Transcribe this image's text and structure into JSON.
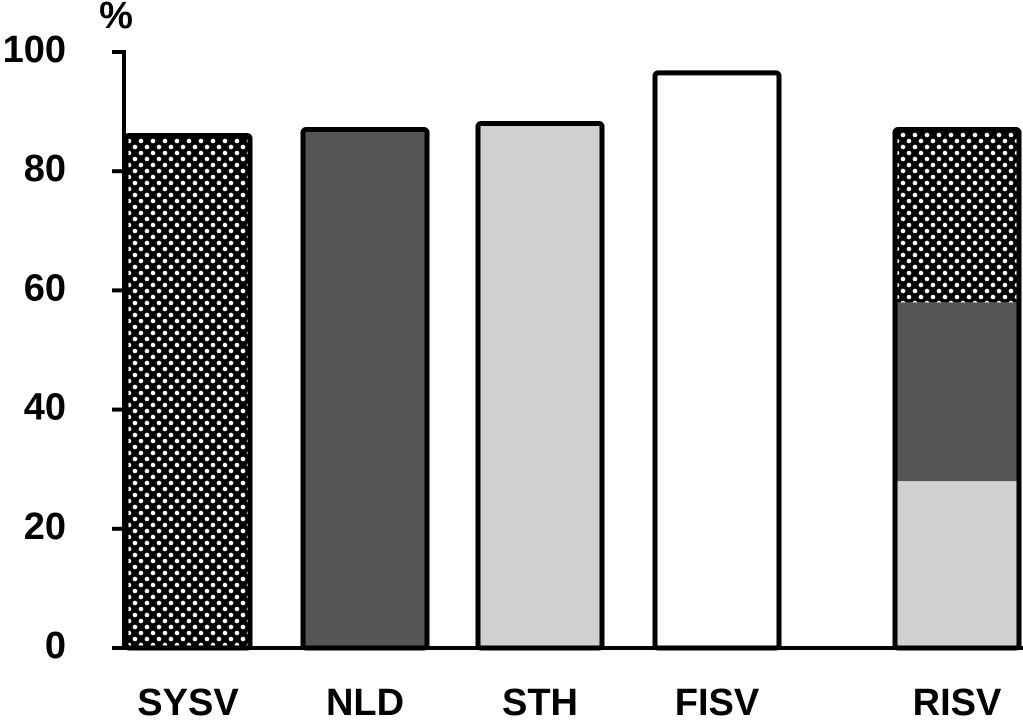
{
  "chart_data": {
    "type": "stacked_bar",
    "ylabel": "%",
    "categories": [
      "SYSV",
      "NLD",
      "STH",
      "FISV",
      "RISV"
    ],
    "series": [
      {
        "color": "#d0d0d0",
        "values": [
          null,
          null,
          88,
          null,
          28
        ]
      },
      {
        "color": "#555555",
        "values": [
          null,
          87,
          null,
          null,
          30
        ]
      },
      {
        "color": "#000000",
        "pattern": "dots",
        "values": [
          86,
          null,
          null,
          null,
          29
        ]
      },
      {
        "color": "#ffffff",
        "values": [
          null,
          null,
          null,
          96.5,
          null
        ]
      }
    ],
    "ylim": [
      0,
      100
    ],
    "yticks": [
      0,
      20,
      40,
      60,
      80,
      100
    ]
  }
}
